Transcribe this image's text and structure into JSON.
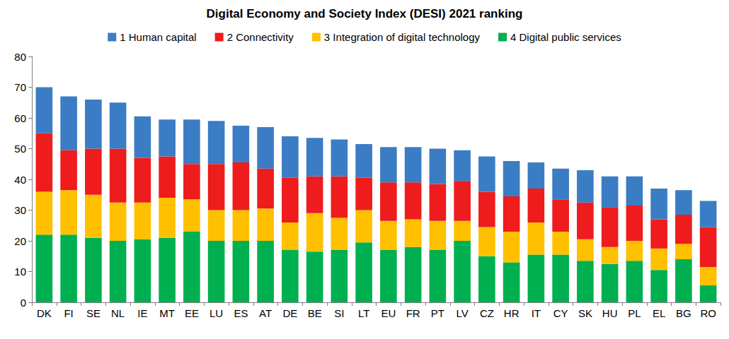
{
  "chart_data": {
    "type": "bar",
    "title": "Digital Economy and Society Index (DESI) 2021 ranking",
    "stacked": true,
    "grid": false,
    "legend": "top",
    "categories": [
      "DK",
      "FI",
      "SE",
      "NL",
      "IE",
      "MT",
      "EE",
      "LU",
      "ES",
      "AT",
      "DE",
      "BE",
      "SI",
      "LT",
      "EU",
      "FR",
      "PT",
      "LV",
      "CZ",
      "HR",
      "IT",
      "CY",
      "SK",
      "HU",
      "PL",
      "EL",
      "BG",
      "RO"
    ],
    "series": [
      {
        "name": "1 Human capital",
        "color": "#3b7dc4",
        "values": [
          15,
          17.5,
          16,
          15,
          13.5,
          12,
          14.5,
          14,
          12,
          13.5,
          13.5,
          12.5,
          12,
          11,
          11.5,
          11.5,
          11.5,
          10,
          11.5,
          11.5,
          8.5,
          10,
          10.5,
          10,
          9.5,
          10,
          8,
          8.5
        ]
      },
      {
        "name": "2 Connectivity",
        "color": "#ee1c1c",
        "values": [
          19,
          13,
          15,
          17.5,
          14.5,
          13.5,
          11.5,
          15,
          15.5,
          13,
          14.5,
          12,
          13.5,
          10.5,
          12.5,
          12,
          12,
          13,
          11.5,
          11.5,
          11,
          10.5,
          12,
          13,
          11.5,
          9.5,
          9.5,
          13
        ]
      },
      {
        "name": "3 Integration of digital technology",
        "color": "#ffc000",
        "values": [
          14,
          14.5,
          14,
          12.5,
          12,
          13,
          10.5,
          10,
          10,
          10.5,
          9,
          12.5,
          10.5,
          10.5,
          9.5,
          9,
          9.5,
          6.5,
          9.5,
          10,
          10.5,
          7.5,
          7,
          5.5,
          6.5,
          7,
          5,
          6
        ]
      },
      {
        "name": "4 Digital public services",
        "color": "#00b050",
        "values": [
          22,
          22,
          21,
          20,
          20.5,
          21,
          23,
          20,
          20,
          20,
          17,
          16.5,
          17,
          19.5,
          17,
          18,
          17,
          20,
          15,
          13,
          15.5,
          15.5,
          13.5,
          12.5,
          13.5,
          10.5,
          14,
          5.5
        ]
      }
    ],
    "ylim": [
      0,
      80
    ],
    "yticks": [
      0,
      10,
      20,
      30,
      40,
      50,
      60,
      70,
      80
    ]
  }
}
